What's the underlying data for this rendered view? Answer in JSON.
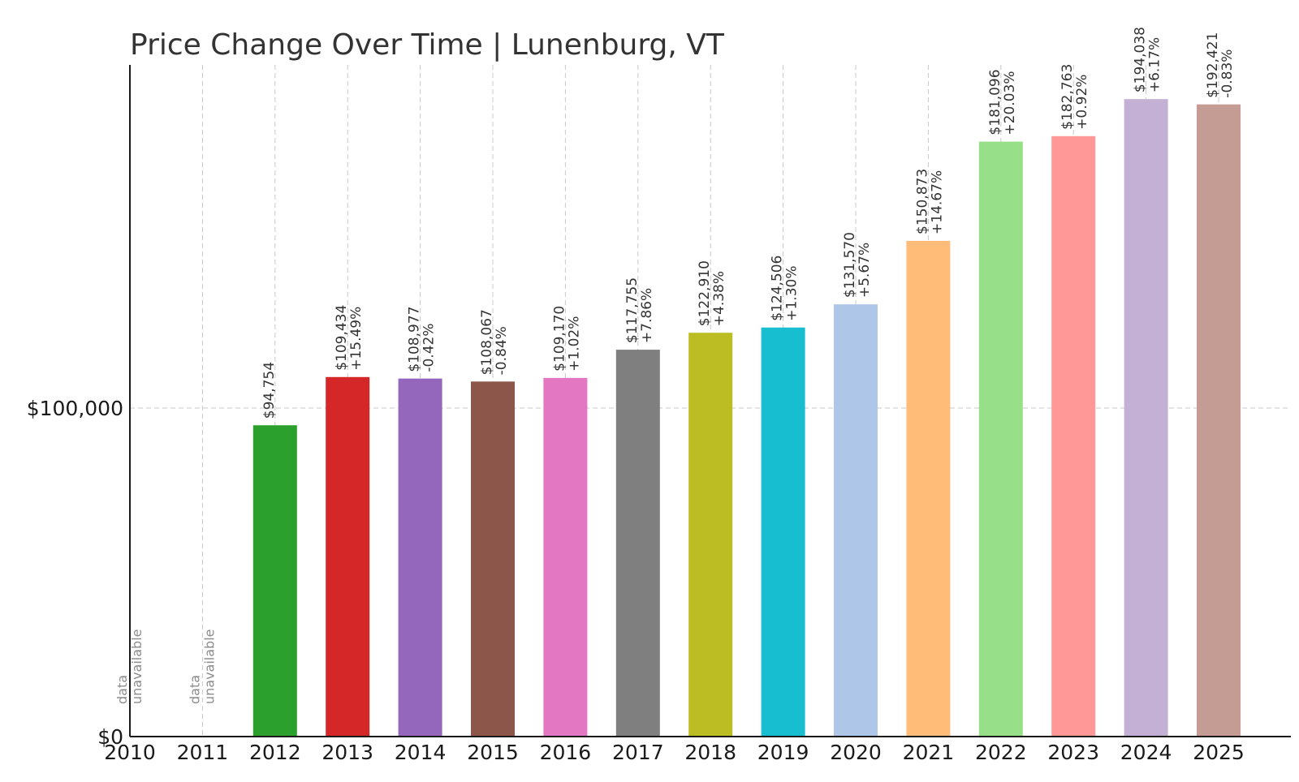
{
  "chart_data": {
    "type": "bar",
    "title": "Price Change Over Time | Lunenburg, VT",
    "xlabel": "",
    "ylabel": "",
    "ylim": [
      0,
      205000
    ],
    "y_ticks": [
      {
        "value": 0,
        "label": "$0"
      },
      {
        "value": 100000,
        "label": "$100,000"
      }
    ],
    "grid": true,
    "unavailable_label": [
      "data",
      "unavailable"
    ],
    "categories": [
      "2010",
      "2011",
      "2012",
      "2013",
      "2014",
      "2015",
      "2016",
      "2017",
      "2018",
      "2019",
      "2020",
      "2021",
      "2022",
      "2023",
      "2024",
      "2025"
    ],
    "values": [
      null,
      null,
      94754,
      109434,
      108977,
      108067,
      109170,
      117755,
      122910,
      124506,
      131570,
      150873,
      181096,
      182763,
      194038,
      192421
    ],
    "value_labels": [
      "",
      "",
      "$94,754",
      "$109,434",
      "$108,977",
      "$108,067",
      "$109,170",
      "$117,755",
      "$122,910",
      "$124,506",
      "$131,570",
      "$150,873",
      "$181,096",
      "$182,763",
      "$194,038",
      "$192,421"
    ],
    "change_labels": [
      "",
      "",
      "",
      "+15.49%",
      "-0.42%",
      "-0.84%",
      "+1.02%",
      "+7.86%",
      "+4.38%",
      "+1.30%",
      "+5.67%",
      "+14.67%",
      "+20.03%",
      "+0.92%",
      "+6.17%",
      "-0.83%"
    ],
    "colors": [
      "#1f77b4",
      "#ff7f0e",
      "#2ca02c",
      "#d62728",
      "#9467bd",
      "#8c564b",
      "#e377c2",
      "#7f7f7f",
      "#bcbd22",
      "#17becf",
      "#aec7e8",
      "#ffbb78",
      "#98df8a",
      "#ff9896",
      "#c5b0d5",
      "#c49c94"
    ]
  }
}
